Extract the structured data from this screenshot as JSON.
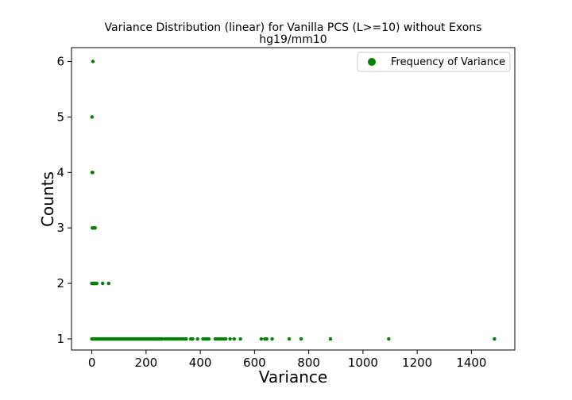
{
  "chart_data": {
    "type": "scatter",
    "title": "Variance Distribution (linear) for Vanilla PCS (L>=10) without Exons",
    "subtitle": "hg19/mm10",
    "xlabel": "Variance",
    "ylabel": "Counts",
    "xlim": [
      -75,
      1560
    ],
    "ylim": [
      0.8,
      6.25
    ],
    "xticks": [
      0,
      200,
      400,
      600,
      800,
      1000,
      1200,
      1400
    ],
    "yticks": [
      1,
      2,
      3,
      4,
      5,
      6
    ],
    "grid": false,
    "legend": {
      "position": "top-right",
      "entries": [
        "Frequency of Variance"
      ]
    },
    "series": [
      {
        "name": "Frequency of Variance",
        "color": "#008000",
        "points": [
          [
            0.5,
            5
          ],
          [
            4,
            6
          ],
          [
            1,
            4
          ],
          [
            3,
            4
          ],
          [
            2,
            3
          ],
          [
            5,
            3
          ],
          [
            8,
            3
          ],
          [
            12,
            3
          ],
          [
            0,
            2
          ],
          [
            2,
            2
          ],
          [
            4,
            2
          ],
          [
            6,
            2
          ],
          [
            8,
            2
          ],
          [
            10,
            2
          ],
          [
            12,
            2
          ],
          [
            15,
            2
          ],
          [
            18,
            2
          ],
          [
            40,
            2
          ],
          [
            62,
            2
          ],
          [
            0,
            1
          ],
          [
            3,
            1
          ],
          [
            6,
            1
          ],
          [
            9,
            1
          ],
          [
            12,
            1
          ],
          [
            15,
            1
          ],
          [
            18,
            1
          ],
          [
            21,
            1
          ],
          [
            24,
            1
          ],
          [
            27,
            1
          ],
          [
            30,
            1
          ],
          [
            33,
            1
          ],
          [
            36,
            1
          ],
          [
            39,
            1
          ],
          [
            42,
            1
          ],
          [
            45,
            1
          ],
          [
            48,
            1
          ],
          [
            51,
            1
          ],
          [
            54,
            1
          ],
          [
            57,
            1
          ],
          [
            60,
            1
          ],
          [
            63,
            1
          ],
          [
            66,
            1
          ],
          [
            69,
            1
          ],
          [
            72,
            1
          ],
          [
            75,
            1
          ],
          [
            78,
            1
          ],
          [
            81,
            1
          ],
          [
            84,
            1
          ],
          [
            87,
            1
          ],
          [
            90,
            1
          ],
          [
            93,
            1
          ],
          [
            96,
            1
          ],
          [
            99,
            1
          ],
          [
            102,
            1
          ],
          [
            105,
            1
          ],
          [
            108,
            1
          ],
          [
            111,
            1
          ],
          [
            114,
            1
          ],
          [
            117,
            1
          ],
          [
            120,
            1
          ],
          [
            123,
            1
          ],
          [
            126,
            1
          ],
          [
            129,
            1
          ],
          [
            132,
            1
          ],
          [
            135,
            1
          ],
          [
            138,
            1
          ],
          [
            141,
            1
          ],
          [
            144,
            1
          ],
          [
            147,
            1
          ],
          [
            150,
            1
          ],
          [
            153,
            1
          ],
          [
            156,
            1
          ],
          [
            159,
            1
          ],
          [
            162,
            1
          ],
          [
            165,
            1
          ],
          [
            168,
            1
          ],
          [
            171,
            1
          ],
          [
            174,
            1
          ],
          [
            177,
            1
          ],
          [
            180,
            1
          ],
          [
            183,
            1
          ],
          [
            186,
            1
          ],
          [
            189,
            1
          ],
          [
            192,
            1
          ],
          [
            195,
            1
          ],
          [
            198,
            1
          ],
          [
            201,
            1
          ],
          [
            204,
            1
          ],
          [
            207,
            1
          ],
          [
            210,
            1
          ],
          [
            213,
            1
          ],
          [
            216,
            1
          ],
          [
            219,
            1
          ],
          [
            222,
            1
          ],
          [
            225,
            1
          ],
          [
            228,
            1
          ],
          [
            231,
            1
          ],
          [
            234,
            1
          ],
          [
            237,
            1
          ],
          [
            240,
            1
          ],
          [
            243,
            1
          ],
          [
            246,
            1
          ],
          [
            249,
            1
          ],
          [
            252,
            1
          ],
          [
            255,
            1
          ],
          [
            258,
            1
          ],
          [
            261,
            1
          ],
          [
            270,
            1
          ],
          [
            276,
            1
          ],
          [
            282,
            1
          ],
          [
            288,
            1
          ],
          [
            294,
            1
          ],
          [
            300,
            1
          ],
          [
            306,
            1
          ],
          [
            312,
            1
          ],
          [
            318,
            1
          ],
          [
            324,
            1
          ],
          [
            330,
            1
          ],
          [
            336,
            1
          ],
          [
            342,
            1
          ],
          [
            348,
            1
          ],
          [
            365,
            1
          ],
          [
            372,
            1
          ],
          [
            390,
            1
          ],
          [
            410,
            1
          ],
          [
            418,
            1
          ],
          [
            425,
            1
          ],
          [
            432,
            1
          ],
          [
            455,
            1
          ],
          [
            462,
            1
          ],
          [
            470,
            1
          ],
          [
            478,
            1
          ],
          [
            486,
            1
          ],
          [
            494,
            1
          ],
          [
            510,
            1
          ],
          [
            525,
            1
          ],
          [
            548,
            1
          ],
          [
            625,
            1
          ],
          [
            638,
            1
          ],
          [
            645,
            1
          ],
          [
            665,
            1
          ],
          [
            728,
            1
          ],
          [
            772,
            1
          ],
          [
            880,
            1
          ],
          [
            1095,
            1
          ],
          [
            1485,
            1
          ]
        ]
      }
    ]
  }
}
